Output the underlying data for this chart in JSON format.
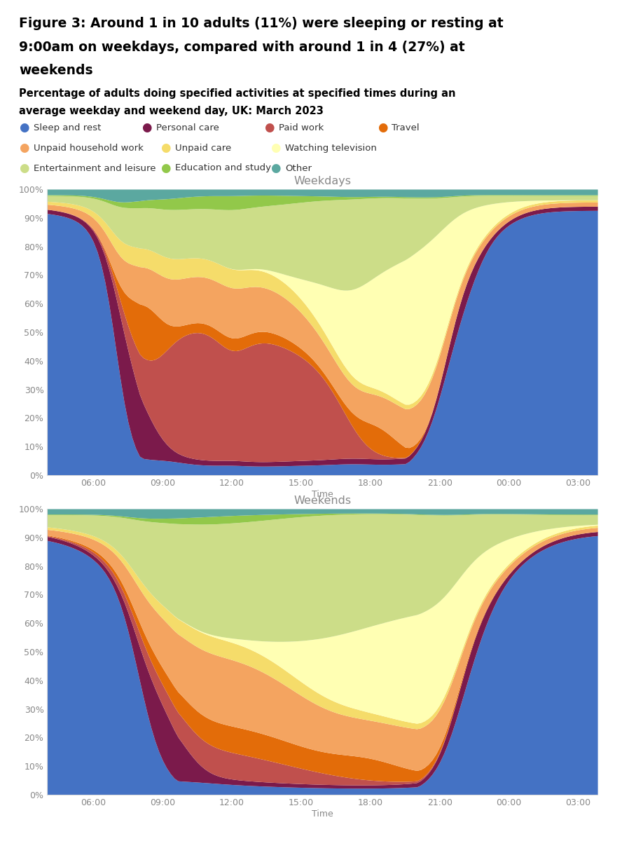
{
  "title_line1": "Figure 3: Around 1 in 10 adults (11%) were sleeping or resting at",
  "title_line2": "9:00am on weekdays, compared with around 1 in 4 (27%) at",
  "title_line3": "weekends",
  "subtitle_line1": "Percentage of adults doing specified activities at specified times during an",
  "subtitle_line2": "average weekday and weekend day, UK: March 2023",
  "categories": [
    "Sleep and rest",
    "Personal care",
    "Paid work",
    "Travel",
    "Unpaid household work",
    "Unpaid care",
    "Watching television",
    "Entertainment and leisure",
    "Education and study",
    "Other"
  ],
  "colors": [
    "#4472C4",
    "#7B1A4B",
    "#C0504D",
    "#E36C09",
    "#F4A460",
    "#F5DC6A",
    "#FFFFB3",
    "#CCDD88",
    "#92C84A",
    "#5BA8A0"
  ],
  "weekday_title": "Weekdays",
  "weekend_title": "Weekends",
  "time_ticks": [
    "06:00",
    "09:00",
    "12:00",
    "15:00",
    "18:00",
    "21:00",
    "00:00",
    "03:00"
  ],
  "tick_positions": [
    12,
    30,
    48,
    66,
    84,
    102,
    120,
    138
  ],
  "n_points": 144
}
